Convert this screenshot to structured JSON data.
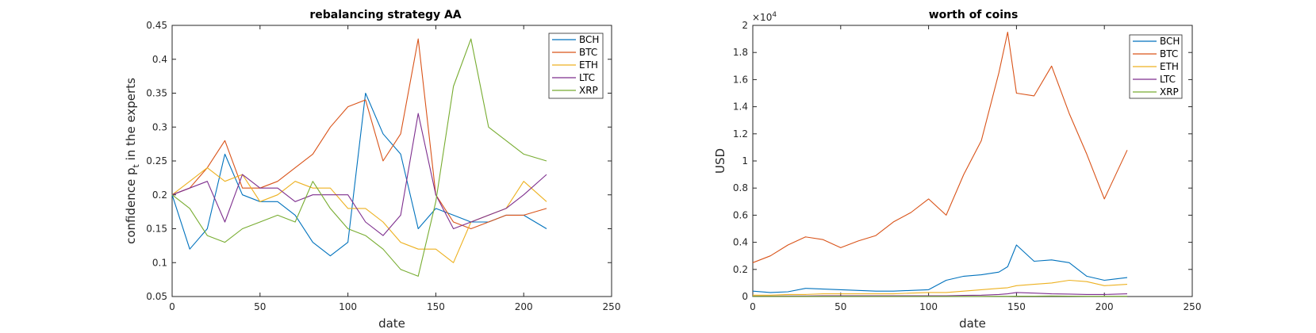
{
  "figure": {
    "colors": {
      "BCH": "#0072BD",
      "BTC": "#D95319",
      "ETH": "#EDB120",
      "LTC": "#7E2F8E",
      "XRP": "#77AC30"
    }
  },
  "chart_data": [
    {
      "type": "line",
      "title": "rebalancing strategy AA",
      "xlabel": "date",
      "ylabel_main": "confidence p",
      "ylabel_sub": "t",
      "ylabel_rest": " in the experts",
      "xlim": [
        0,
        250
      ],
      "ylim": [
        0.05,
        0.45
      ],
      "xticks": [
        0,
        50,
        100,
        150,
        200,
        250
      ],
      "yticks": [
        0.05,
        0.1,
        0.15,
        0.2,
        0.25,
        0.3,
        0.35,
        0.4,
        0.45
      ],
      "ytick_labels": [
        "0.05",
        "0.1",
        "0.15",
        "0.2",
        "0.25",
        "0.3",
        "0.35",
        "0.4",
        "0.45"
      ],
      "legend_position": "top-right",
      "grid": false,
      "x": [
        0,
        10,
        20,
        30,
        40,
        50,
        60,
        70,
        80,
        90,
        100,
        110,
        120,
        130,
        140,
        150,
        160,
        170,
        180,
        190,
        200,
        213
      ],
      "series": [
        {
          "name": "BCH",
          "values": [
            0.2,
            0.12,
            0.15,
            0.26,
            0.2,
            0.19,
            0.19,
            0.17,
            0.13,
            0.11,
            0.13,
            0.35,
            0.29,
            0.26,
            0.15,
            0.18,
            0.17,
            0.16,
            0.16,
            0.17,
            0.17,
            0.15
          ]
        },
        {
          "name": "BTC",
          "values": [
            0.2,
            0.21,
            0.24,
            0.28,
            0.21,
            0.21,
            0.22,
            0.24,
            0.26,
            0.3,
            0.33,
            0.34,
            0.25,
            0.29,
            0.43,
            0.2,
            0.16,
            0.15,
            0.16,
            0.17,
            0.17,
            0.18
          ]
        },
        {
          "name": "ETH",
          "values": [
            0.2,
            0.22,
            0.24,
            0.22,
            0.23,
            0.19,
            0.2,
            0.22,
            0.21,
            0.21,
            0.18,
            0.18,
            0.16,
            0.13,
            0.12,
            0.12,
            0.1,
            0.16,
            0.17,
            0.18,
            0.22,
            0.19
          ]
        },
        {
          "name": "LTC",
          "values": [
            0.2,
            0.21,
            0.22,
            0.16,
            0.23,
            0.21,
            0.21,
            0.19,
            0.2,
            0.2,
            0.2,
            0.16,
            0.14,
            0.17,
            0.32,
            0.2,
            0.15,
            0.16,
            0.17,
            0.18,
            0.2,
            0.23
          ]
        },
        {
          "name": "XRP",
          "values": [
            0.2,
            0.18,
            0.14,
            0.13,
            0.15,
            0.16,
            0.17,
            0.16,
            0.22,
            0.18,
            0.15,
            0.14,
            0.12,
            0.09,
            0.08,
            0.19,
            0.36,
            0.43,
            0.3,
            0.28,
            0.26,
            0.25
          ]
        }
      ]
    },
    {
      "type": "line",
      "title": "worth of coins",
      "xlabel": "date",
      "ylabel": "USD",
      "exponent_base": "×10",
      "exponent_power": "4",
      "xlim": [
        0,
        250
      ],
      "ylim": [
        0,
        20000
      ],
      "xticks": [
        0,
        50,
        100,
        150,
        200,
        250
      ],
      "yticks": [
        0,
        2000,
        4000,
        6000,
        8000,
        10000,
        12000,
        14000,
        16000,
        18000,
        20000
      ],
      "ytick_labels": [
        "0",
        "0.2",
        "0.4",
        "0.6",
        "0.8",
        "1",
        "1.2",
        "1.4",
        "1.6",
        "1.8",
        "2"
      ],
      "legend_position": "top-right",
      "grid": false,
      "x": [
        0,
        10,
        20,
        30,
        40,
        50,
        60,
        70,
        80,
        90,
        100,
        110,
        120,
        130,
        140,
        145,
        150,
        160,
        170,
        180,
        190,
        200,
        213
      ],
      "series": [
        {
          "name": "BCH",
          "values": [
            400,
            300,
            350,
            600,
            550,
            500,
            450,
            400,
            400,
            450,
            500,
            1200,
            1500,
            1600,
            1800,
            2200,
            3800,
            2600,
            2700,
            2500,
            1500,
            1200,
            1400
          ]
        },
        {
          "name": "BTC",
          "values": [
            2500,
            3000,
            3800,
            4400,
            4200,
            3600,
            4100,
            4500,
            5500,
            6200,
            7200,
            6000,
            9000,
            11500,
            16500,
            19500,
            15000,
            14800,
            17000,
            13500,
            10500,
            7200,
            10800
          ]
        },
        {
          "name": "ETH",
          "values": [
            100,
            100,
            150,
            150,
            200,
            200,
            200,
            200,
            200,
            250,
            300,
            300,
            400,
            500,
            600,
            650,
            800,
            900,
            1000,
            1200,
            1100,
            800,
            900
          ]
        },
        {
          "name": "LTC",
          "values": [
            30,
            30,
            40,
            40,
            50,
            50,
            50,
            50,
            50,
            60,
            60,
            60,
            80,
            100,
            150,
            200,
            300,
            250,
            200,
            180,
            150,
            150,
            200
          ]
        },
        {
          "name": "XRP",
          "values": [
            10,
            10,
            10,
            10,
            10,
            10,
            10,
            10,
            10,
            10,
            10,
            10,
            10,
            10,
            20,
            20,
            30,
            30,
            40,
            30,
            20,
            20,
            20
          ]
        }
      ]
    }
  ]
}
